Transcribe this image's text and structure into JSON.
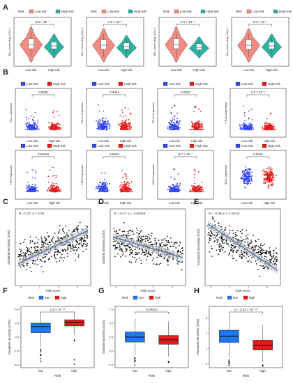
{
  "panel_letters": [
    "A",
    "B",
    "C",
    "D",
    "E",
    "F",
    "G",
    "H"
  ],
  "colors": {
    "low_violin": "#f28b82",
    "high_violin": "#2bb3a3",
    "low_dots": "#3344ee",
    "high_dots": "#e31a1c",
    "low_box": "#1f77f2",
    "high_box": "#e31a1c",
    "regression": "#5577aa",
    "ci_band": "#c8c8c8"
  },
  "chart_data": [
    {
      "panel": "A",
      "type": "violin",
      "legend": {
        "title": "Risk",
        "labels": [
          "Low-risk",
          "High-risk"
        ]
      },
      "plots": [
        {
          "ylabel": "IMV_combo_drug_IC50_1",
          "p": "3.5 × 10⁻⁴",
          "categories": [
            "Low-risk",
            "High-risk"
          ]
        },
        {
          "ylabel": "IMV_combo_drug_IC50_2",
          "p": "7.6 × 10⁻⁴",
          "categories": [
            "Low-risk",
            "High-risk"
          ]
        },
        {
          "ylabel": "IMV_combo_drug_IC50_3",
          "p": "3.4 × 10⁻⁴",
          "categories": [
            "Low-risk",
            "High-risk"
          ]
        },
        {
          "ylabel": "IMV_combo_drug_IC50_4",
          "p": "3.4 × 10⁻⁴",
          "categories": [
            "Low-risk",
            "High-risk"
          ]
        }
      ]
    },
    {
      "panel": "B",
      "type": "scatter",
      "legend": {
        "labels": [
          "Low-risk",
          "High-risk"
        ]
      },
      "plots": [
        {
          "ylabel": "PD-1 expression",
          "p": "0.0006",
          "categories": [
            "Low-risk",
            "High-risk"
          ]
        },
        {
          "ylabel": "PD-L1 expression",
          "p": "0.0064",
          "categories": [
            "Low-risk",
            "High-risk"
          ]
        },
        {
          "ylabel": "PD-L2 expression",
          "p": "0.0020",
          "categories": [
            "Low-risk",
            "High-risk"
          ]
        },
        {
          "ylabel": "CTLA4 expression",
          "p": "1.3 × 10⁻⁵",
          "categories": [
            "Low-risk",
            "High-risk"
          ]
        },
        {
          "ylabel": "TIGIT expression",
          "p": "0.00016",
          "categories": [
            "Low-risk",
            "High-risk"
          ]
        },
        {
          "ylabel": "TIM-3 expression",
          "p": "0.0049",
          "categories": [
            "Low-risk",
            "High-risk"
          ]
        },
        {
          "ylabel": "LAG-3 expression",
          "p": "8.7 × 10⁻⁷",
          "categories": [
            "Low-risk",
            "High-risk"
          ]
        },
        {
          "ylabel": "IDO1 expression",
          "p": "0.0012",
          "categories": [
            "Low-risk",
            "High-risk"
          ]
        }
      ]
    },
    {
      "panel": "C",
      "type": "scatter",
      "annotation": "R = 0.27, p < 0.05",
      "xlabel": "Risk score",
      "ylabel": "Sorafenib sensitivity (IC50)",
      "slope": 0.27
    },
    {
      "panel": "D",
      "type": "scatter",
      "annotation": "R = -0.17, p = 0.00018",
      "xlabel": "Risk score",
      "ylabel": "Sunitinib sensitivity (IC50)",
      "slope": -0.17
    },
    {
      "panel": "E",
      "type": "scatter",
      "annotation": "R = -0.38, p < 2.2e-16",
      "xlabel": "Risk score",
      "ylabel": "Pazopanib sensitivity (IC50)",
      "slope": -0.38
    },
    {
      "panel": "F",
      "type": "box",
      "legend": {
        "title": "Risk",
        "labels": [
          "low",
          "high"
        ]
      },
      "p": "1.8 × 10⁻¹⁰",
      "xlabel": "Risk",
      "ylabel": "Sorafenib sensitivity (IC50)",
      "categories": [
        "low",
        "high"
      ],
      "yticks": [
        "5.0",
        "2.5",
        "0.0",
        "-2.5",
        "-5.0"
      ],
      "ylim": [
        -5.5,
        5.5
      ],
      "boxes": [
        {
          "q1": 0.8,
          "median": 1.9,
          "q3": 2.5,
          "lo": -1.8,
          "hi": 4.5
        },
        {
          "q1": 2.0,
          "median": 2.6,
          "q3": 3.1,
          "lo": 0.4,
          "hi": 4.6
        }
      ]
    },
    {
      "panel": "G",
      "type": "box",
      "legend": {
        "title": "Risk",
        "labels": [
          "low",
          "high"
        ]
      },
      "p": "0.00012",
      "xlabel": "Risk",
      "ylabel": "Sunitinib sensitivity (IC50)",
      "categories": [
        "low",
        "high"
      ],
      "yticks": [
        "7.5",
        "5.0",
        "2.5",
        "0.0",
        "-2.5"
      ],
      "ylim": [
        -3,
        8
      ],
      "boxes": [
        {
          "q1": 1.6,
          "median": 2.5,
          "q3": 3.4,
          "lo": -0.8,
          "hi": 5.8
        },
        {
          "q1": 1.2,
          "median": 2.0,
          "q3": 2.8,
          "lo": -1.0,
          "hi": 5.3
        }
      ]
    },
    {
      "panel": "H",
      "type": "box",
      "legend": {
        "title": "Risk",
        "labels": [
          "low",
          "high"
        ]
      },
      "p": "p = 2.33 × 10⁻¹⁶",
      "xlabel": "Risk",
      "ylabel": "Pazopanib sensitivity (IC50)",
      "categories": [
        "low",
        "high"
      ],
      "yticks": [
        "6",
        "4",
        "2",
        "0"
      ],
      "ylim": [
        -0.5,
        7.5
      ],
      "boxes": [
        {
          "q1": 2.8,
          "median": 3.6,
          "q3": 4.4,
          "lo": 0.8,
          "hi": 6.6
        },
        {
          "q1": 1.8,
          "median": 2.4,
          "q3": 3.1,
          "lo": 0.2,
          "hi": 5.0
        }
      ]
    }
  ]
}
